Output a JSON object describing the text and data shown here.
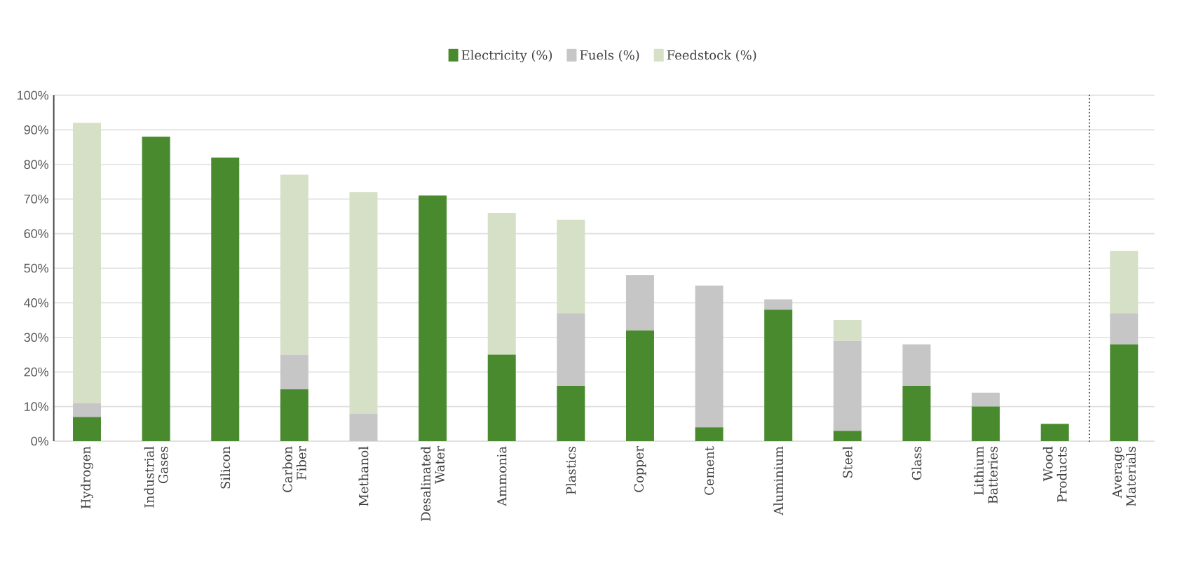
{
  "chart_data": {
    "type": "bar",
    "stacked": true,
    "categories": [
      "Hydrogen",
      "Industrial Gases",
      "Silicon",
      "Carbon Fiber",
      "Methanol",
      "Desalinated Water",
      "Ammonia",
      "Plastics",
      "Copper",
      "Cement",
      "Aluminium",
      "Steel",
      "Glass",
      "Lithium Batteries",
      "Wood Products",
      "Average Materials"
    ],
    "series": [
      {
        "name": "Electricity (%)",
        "color": "#4a8a2e",
        "values": [
          7,
          88,
          82,
          15,
          0,
          71,
          25,
          16,
          32,
          4,
          38,
          3,
          16,
          10,
          5,
          28
        ]
      },
      {
        "name": "Fuels (%)",
        "color": "#c6c6c6",
        "values": [
          4,
          0,
          0,
          10,
          8,
          0,
          0,
          21,
          16,
          41,
          3,
          26,
          12,
          4,
          0,
          9
        ]
      },
      {
        "name": "Feedstock (%)",
        "color": "#d5e0c6",
        "values": [
          81,
          0,
          0,
          52,
          64,
          0,
          41,
          27,
          0,
          0,
          0,
          6,
          0,
          0,
          0,
          18
        ]
      }
    ],
    "ylim": [
      0,
      100
    ],
    "yticks": [
      {
        "value": 0,
        "label": "0%"
      },
      {
        "value": 10,
        "label": "10%"
      },
      {
        "value": 20,
        "label": "20%"
      },
      {
        "value": 30,
        "label": "30%"
      },
      {
        "value": 40,
        "label": "40%"
      },
      {
        "value": 50,
        "label": "50%"
      },
      {
        "value": 60,
        "label": "60%"
      },
      {
        "value": 70,
        "label": "70%"
      },
      {
        "value": 80,
        "label": "80%"
      },
      {
        "value": 90,
        "label": "90%"
      },
      {
        "value": 100,
        "label": "100%"
      }
    ],
    "grid": "y",
    "legend": "top"
  }
}
